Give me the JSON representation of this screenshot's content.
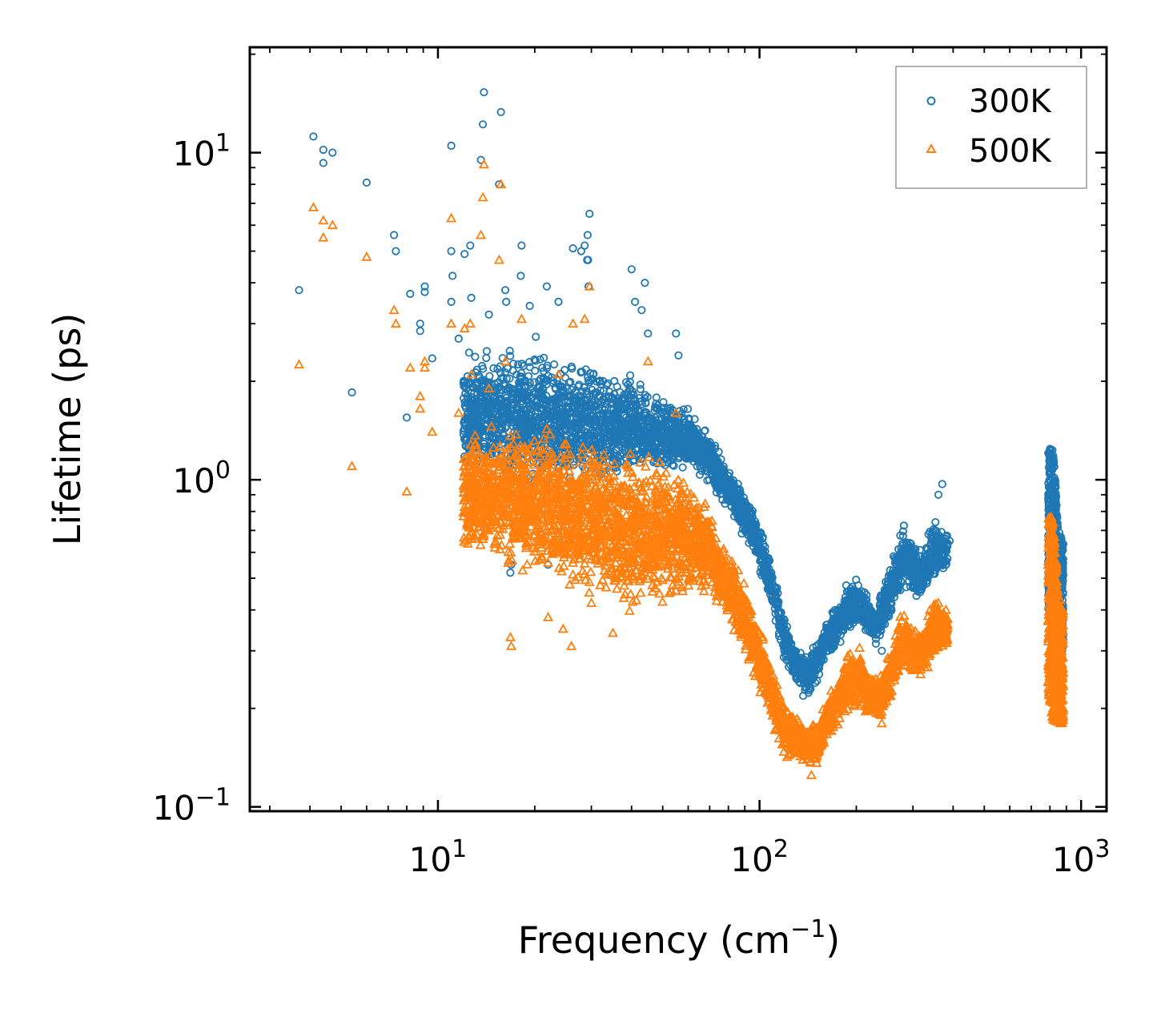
{
  "chart_data": {
    "type": "scatter",
    "title": "",
    "xlabel": "Frequency (cm",
    "xlabel_sup": "−1",
    "xlabel_suffix": ")",
    "ylabel": "Lifetime (ps)",
    "x_scale": "log",
    "y_scale": "log",
    "xlim": [
      2.6,
      1200
    ],
    "ylim": [
      0.097,
      21
    ],
    "x_ticks": [
      {
        "value": 10,
        "base": "10",
        "exp": "1"
      },
      {
        "value": 100,
        "base": "10",
        "exp": "2"
      },
      {
        "value": 1000,
        "base": "10",
        "exp": "3"
      }
    ],
    "y_ticks": [
      {
        "value": 0.1,
        "base": "10",
        "exp": "−1"
      },
      {
        "value": 1,
        "base": "10",
        "exp": "0"
      },
      {
        "value": 10,
        "base": "10",
        "exp": "1"
      }
    ],
    "legend_position": "top-right",
    "series": [
      {
        "name": "300K",
        "marker": "circle",
        "color": "#1f77b4",
        "explicit_points": [
          [
            3.7,
            3.8
          ],
          [
            4.1,
            11.2
          ],
          [
            4.4,
            10.2
          ],
          [
            4.4,
            9.3
          ],
          [
            4.7,
            10.0
          ],
          [
            5.4,
            1.85
          ],
          [
            6.0,
            8.1
          ],
          [
            7.3,
            5.6
          ],
          [
            7.4,
            5.0
          ],
          [
            8.0,
            1.55
          ],
          [
            8.2,
            3.7
          ],
          [
            8.8,
            3.0
          ],
          [
            8.8,
            2.85
          ],
          [
            9.1,
            3.9
          ],
          [
            9.1,
            3.75
          ],
          [
            9.6,
            2.35
          ],
          [
            11.0,
            10.5
          ],
          [
            11.0,
            5.0
          ],
          [
            11.1,
            4.2
          ],
          [
            11.0,
            3.5
          ],
          [
            11.6,
            2.7
          ],
          [
            12.1,
            4.9
          ],
          [
            12.6,
            5.2
          ],
          [
            12.7,
            3.6
          ],
          [
            13.6,
            9.5
          ],
          [
            13.8,
            12.2
          ],
          [
            13.9,
            15.3
          ],
          [
            15.7,
            13.3
          ],
          [
            15.5,
            8.0
          ],
          [
            14.4,
            3.2
          ],
          [
            16.2,
            3.8
          ],
          [
            16.3,
            3.5
          ],
          [
            18.2,
            5.2
          ],
          [
            18.1,
            4.2
          ],
          [
            19.3,
            3.4
          ],
          [
            21.8,
            3.9
          ],
          [
            23.7,
            3.5
          ],
          [
            26.3,
            5.1
          ],
          [
            27.9,
            5.0
          ],
          [
            28.6,
            5.2
          ],
          [
            29.1,
            4.7
          ],
          [
            29.3,
            4.7
          ],
          [
            29.6,
            6.5
          ],
          [
            29.2,
            5.6
          ],
          [
            29.4,
            3.9
          ],
          [
            13.2,
            1.9
          ],
          [
            14.6,
            1.5
          ],
          [
            22.0,
            0.55
          ],
          [
            16.8,
            0.52
          ],
          [
            16.9,
            0.55
          ],
          [
            24.5,
            0.65
          ],
          [
            40.0,
            4.4
          ],
          [
            44.0,
            4.0
          ],
          [
            41.0,
            3.5
          ],
          [
            43.0,
            3.3
          ],
          [
            55.0,
            2.8
          ],
          [
            56.0,
            2.4
          ],
          [
            45.0,
            2.8
          ],
          [
            150.0,
            0.3
          ],
          [
            240.0,
            0.3
          ],
          [
            130.0,
            0.25
          ],
          [
            370.0,
            0.97
          ],
          [
            360.0,
            0.9
          ],
          [
            390.0,
            0.65
          ]
        ],
        "cloud_envelope": [
          [
            12,
            0.95,
            2.6
          ],
          [
            20,
            0.85,
            2.8
          ],
          [
            25,
            0.85,
            2.6
          ],
          [
            30,
            0.9,
            2.4
          ],
          [
            40,
            0.95,
            2.2
          ],
          [
            50,
            1.0,
            1.9
          ],
          [
            60,
            1.05,
            1.7
          ],
          [
            70,
            0.95,
            1.4
          ],
          [
            80,
            0.8,
            1.1
          ],
          [
            90,
            0.65,
            0.95
          ],
          [
            100,
            0.52,
            0.75
          ],
          [
            110,
            0.38,
            0.55
          ],
          [
            120,
            0.27,
            0.4
          ],
          [
            130,
            0.23,
            0.32
          ],
          [
            140,
            0.21,
            0.3
          ],
          [
            150,
            0.23,
            0.32
          ],
          [
            160,
            0.27,
            0.38
          ],
          [
            175,
            0.3,
            0.45
          ],
          [
            190,
            0.33,
            0.52
          ],
          [
            200,
            0.35,
            0.52
          ],
          [
            215,
            0.33,
            0.46
          ],
          [
            230,
            0.31,
            0.4
          ],
          [
            250,
            0.35,
            0.55
          ],
          [
            280,
            0.45,
            0.75
          ],
          [
            300,
            0.42,
            0.7
          ],
          [
            320,
            0.4,
            0.65
          ],
          [
            350,
            0.48,
            0.78
          ],
          [
            385,
            0.5,
            0.72
          ]
        ],
        "cloud_envelope_hi": [
          [
            790,
            0.4,
            1.3
          ],
          [
            820,
            0.35,
            1.25
          ],
          [
            850,
            0.3,
            0.7
          ],
          [
            880,
            0.3,
            0.65
          ]
        ]
      },
      {
        "name": "500K",
        "marker": "triangle",
        "color": "#ff7f0e",
        "explicit_points": [
          [
            3.7,
            2.25
          ],
          [
            4.1,
            6.8
          ],
          [
            4.4,
            6.2
          ],
          [
            4.4,
            5.5
          ],
          [
            4.7,
            6.0
          ],
          [
            5.4,
            1.1
          ],
          [
            6.0,
            4.8
          ],
          [
            7.3,
            3.3
          ],
          [
            7.4,
            3.0
          ],
          [
            8.0,
            0.92
          ],
          [
            8.2,
            2.2
          ],
          [
            8.8,
            1.8
          ],
          [
            8.8,
            1.65
          ],
          [
            9.1,
            2.3
          ],
          [
            9.1,
            2.2
          ],
          [
            9.6,
            1.4
          ],
          [
            11.0,
            6.3
          ],
          [
            11.0,
            3.0
          ],
          [
            11.6,
            1.6
          ],
          [
            12.1,
            2.9
          ],
          [
            12.6,
            3.0
          ],
          [
            12.7,
            2.1
          ],
          [
            13.6,
            5.6
          ],
          [
            13.8,
            7.3
          ],
          [
            13.9,
            9.2
          ],
          [
            15.7,
            8.0
          ],
          [
            15.5,
            4.7
          ],
          [
            14.4,
            1.9
          ],
          [
            16.2,
            2.3
          ],
          [
            18.2,
            3.1
          ],
          [
            23.7,
            2.1
          ],
          [
            26.3,
            3.0
          ],
          [
            28.6,
            3.1
          ],
          [
            29.6,
            3.9
          ],
          [
            16.8,
            0.33
          ],
          [
            16.9,
            0.31
          ],
          [
            22.0,
            0.38
          ],
          [
            24.5,
            0.35
          ],
          [
            26.0,
            0.31
          ],
          [
            30.0,
            0.42
          ],
          [
            35.0,
            0.34
          ],
          [
            45.0,
            2.3
          ],
          [
            55.0,
            1.6
          ],
          [
            145.0,
            0.125
          ],
          [
            240.0,
            0.18
          ],
          [
            250.0,
            0.22
          ],
          [
            360.0,
            0.42
          ],
          [
            380.0,
            0.4
          ]
        ],
        "cloud_envelope": [
          [
            12,
            0.55,
            1.5
          ],
          [
            20,
            0.45,
            1.6
          ],
          [
            25,
            0.42,
            1.5
          ],
          [
            30,
            0.4,
            1.4
          ],
          [
            40,
            0.38,
            1.3
          ],
          [
            50,
            0.4,
            1.2
          ],
          [
            60,
            0.42,
            1.1
          ],
          [
            70,
            0.4,
            0.85
          ],
          [
            80,
            0.35,
            0.65
          ],
          [
            90,
            0.28,
            0.5
          ],
          [
            100,
            0.22,
            0.38
          ],
          [
            110,
            0.17,
            0.27
          ],
          [
            120,
            0.14,
            0.22
          ],
          [
            135,
            0.13,
            0.19
          ],
          [
            150,
            0.13,
            0.18
          ],
          [
            160,
            0.15,
            0.21
          ],
          [
            175,
            0.17,
            0.27
          ],
          [
            190,
            0.19,
            0.33
          ],
          [
            205,
            0.19,
            0.32
          ],
          [
            220,
            0.18,
            0.27
          ],
          [
            240,
            0.18,
            0.26
          ],
          [
            260,
            0.21,
            0.35
          ],
          [
            280,
            0.26,
            0.42
          ],
          [
            300,
            0.24,
            0.38
          ],
          [
            320,
            0.23,
            0.36
          ],
          [
            350,
            0.28,
            0.46
          ],
          [
            385,
            0.29,
            0.4
          ]
        ],
        "cloud_envelope_hi": [
          [
            790,
            0.22,
            0.8
          ],
          [
            820,
            0.18,
            0.75
          ],
          [
            850,
            0.18,
            0.45
          ],
          [
            880,
            0.18,
            0.4
          ]
        ]
      }
    ]
  }
}
